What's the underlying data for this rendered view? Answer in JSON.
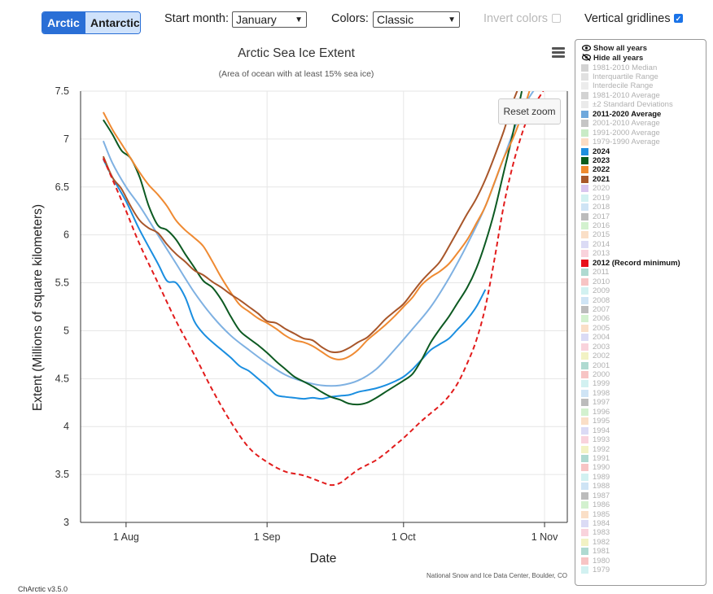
{
  "toolbar": {
    "hemisphere_buttons": [
      {
        "label": "Arctic",
        "active": true
      },
      {
        "label": "Antarctic",
        "active": false
      }
    ],
    "start_month_label": "Start month:",
    "start_month_value": "January",
    "colors_label": "Colors:",
    "colors_value": "Classic",
    "invert_colors_label": "Invert colors",
    "invert_colors_checked": false,
    "vertical_gridlines_label": "Vertical gridlines",
    "vertical_gridlines_checked": true
  },
  "chart_controls": {
    "reset_zoom_label": "Reset zoom",
    "menu_icon": "hamburger-menu-icon"
  },
  "footer": {
    "version": "ChArctic v3.5.0"
  },
  "legend": {
    "show_all": "Show all years",
    "hide_all": "Hide all years",
    "show_icon": "eye-icon",
    "hide_icon": "eye-slash-icon",
    "items": [
      {
        "label": "1981-2010 Median",
        "color": "#a8a8a8",
        "visible": false
      },
      {
        "label": "Interquartile Range",
        "color": "#c4c4c4",
        "visible": false
      },
      {
        "label": "Interdecile Range",
        "color": "#dadada",
        "visible": false
      },
      {
        "label": "1981-2010 Average",
        "color": "#a8a8a8",
        "visible": false
      },
      {
        "label": "±2 Standard Deviations",
        "color": "#d6d6d6",
        "visible": false
      },
      {
        "label": "2011-2020 Average",
        "color": "#6fa8dc",
        "visible": true
      },
      {
        "label": "2001-2010 Average",
        "color": "#8c8c8c",
        "visible": false
      },
      {
        "label": "1991-2000 Average",
        "color": "#93d88e",
        "visible": false
      },
      {
        "label": "1979-1990 Average",
        "color": "#f7b98a",
        "visible": false
      },
      {
        "label": "2024",
        "color": "#1f8fe0",
        "visible": true
      },
      {
        "label": "2023",
        "color": "#0b5d1e",
        "visible": true
      },
      {
        "label": "2022",
        "color": "#ef8a2e",
        "visible": true
      },
      {
        "label": "2021",
        "color": "#a9582a",
        "visible": true
      },
      {
        "label": "2020",
        "color": "#b48be0",
        "visible": false
      },
      {
        "label": "2019",
        "color": "#a6e3e3",
        "visible": false
      },
      {
        "label": "2018",
        "color": "#9fc9ec",
        "visible": false
      },
      {
        "label": "2017",
        "color": "#7a7a7a",
        "visible": false
      },
      {
        "label": "2016",
        "color": "#a7e49f",
        "visible": false
      },
      {
        "label": "2015",
        "color": "#f6c08f",
        "visible": false
      },
      {
        "label": "2014",
        "color": "#b7b7ec",
        "visible": false
      },
      {
        "label": "2013",
        "color": "#f3a7b9",
        "visible": false
      },
      {
        "label": "2012 (Record minimum)",
        "color": "#e8111b",
        "visible": true
      },
      {
        "label": "2011",
        "color": "#5fb5a3",
        "visible": false
      },
      {
        "label": "2010",
        "color": "#f08a8a",
        "visible": false
      },
      {
        "label": "2009",
        "color": "#a6e3e3",
        "visible": false
      },
      {
        "label": "2008",
        "color": "#9fc9ec",
        "visible": false
      },
      {
        "label": "2007",
        "color": "#7a7a7a",
        "visible": false
      },
      {
        "label": "2006",
        "color": "#a7e49f",
        "visible": false
      },
      {
        "label": "2005",
        "color": "#f6c08f",
        "visible": false
      },
      {
        "label": "2004",
        "color": "#b7b7ec",
        "visible": false
      },
      {
        "label": "2003",
        "color": "#f3a7b9",
        "visible": false
      },
      {
        "label": "2002",
        "color": "#e6e68a",
        "visible": false
      },
      {
        "label": "2001",
        "color": "#5fb5a3",
        "visible": false
      },
      {
        "label": "2000",
        "color": "#f08a8a",
        "visible": false
      },
      {
        "label": "1999",
        "color": "#a6e3e3",
        "visible": false
      },
      {
        "label": "1998",
        "color": "#9fc9ec",
        "visible": false
      },
      {
        "label": "1997",
        "color": "#7a7a7a",
        "visible": false
      },
      {
        "label": "1996",
        "color": "#a7e49f",
        "visible": false
      },
      {
        "label": "1995",
        "color": "#f6c08f",
        "visible": false
      },
      {
        "label": "1994",
        "color": "#b7b7ec",
        "visible": false
      },
      {
        "label": "1993",
        "color": "#f3a7b9",
        "visible": false
      },
      {
        "label": "1992",
        "color": "#e6e68a",
        "visible": false
      },
      {
        "label": "1991",
        "color": "#5fb5a3",
        "visible": false
      },
      {
        "label": "1990",
        "color": "#f08a8a",
        "visible": false
      },
      {
        "label": "1989",
        "color": "#a6e3e3",
        "visible": false
      },
      {
        "label": "1988",
        "color": "#9fc9ec",
        "visible": false
      },
      {
        "label": "1987",
        "color": "#7a7a7a",
        "visible": false
      },
      {
        "label": "1986",
        "color": "#a7e49f",
        "visible": false
      },
      {
        "label": "1985",
        "color": "#f6c08f",
        "visible": false
      },
      {
        "label": "1984",
        "color": "#b7b7ec",
        "visible": false
      },
      {
        "label": "1983",
        "color": "#f3a7b9",
        "visible": false
      },
      {
        "label": "1982",
        "color": "#e6e68a",
        "visible": false
      },
      {
        "label": "1981",
        "color": "#5fb5a3",
        "visible": false
      },
      {
        "label": "1980",
        "color": "#f08a8a",
        "visible": false
      },
      {
        "label": "1979",
        "color": "#a6e3e3",
        "visible": false
      }
    ]
  },
  "chart_data": {
    "type": "line",
    "title": "Arctic Sea Ice Extent",
    "subtitle": "(Area of ocean with at least 15% sea ice)",
    "xlabel": "Date",
    "ylabel": "Extent (Millions of square kilometers)",
    "credit": "National Snow and Ice Data Center, Boulder, CO",
    "x_unit": "day of year",
    "xlim": [
      203,
      310
    ],
    "ylim": [
      3,
      7.5
    ],
    "x_ticks": [
      {
        "x": 213,
        "label": "1 Aug"
      },
      {
        "x": 244,
        "label": "1 Sep"
      },
      {
        "x": 274,
        "label": "1 Oct"
      },
      {
        "x": 305,
        "label": "1 Nov"
      }
    ],
    "y_ticks": [
      {
        "y": 3,
        "label": "3"
      },
      {
        "y": 3.5,
        "label": "3.5"
      },
      {
        "y": 4,
        "label": "4"
      },
      {
        "y": 4.5,
        "label": "4.5"
      },
      {
        "y": 5,
        "label": "5"
      },
      {
        "y": 5.5,
        "label": "5.5"
      },
      {
        "y": 6,
        "label": "6"
      },
      {
        "y": 6.5,
        "label": "6.5"
      },
      {
        "y": 7,
        "label": "7"
      },
      {
        "y": 7.5,
        "label": "7.5"
      }
    ],
    "grid": {
      "horizontal": true,
      "vertical": true
    },
    "series": [
      {
        "name": "2011-2020 Average",
        "color": "#7fb1e2",
        "dash": false,
        "x": [
          208,
          210,
          213,
          216,
          220,
          224,
          228,
          232,
          236,
          240,
          244,
          248,
          252,
          256,
          260,
          264,
          268,
          272,
          276,
          280,
          284,
          288,
          292,
          296,
          300,
          304
        ],
        "y": [
          6.98,
          6.75,
          6.5,
          6.3,
          6.0,
          5.7,
          5.4,
          5.15,
          4.95,
          4.8,
          4.66,
          4.54,
          4.47,
          4.43,
          4.43,
          4.48,
          4.6,
          4.8,
          5.02,
          5.25,
          5.55,
          5.9,
          6.3,
          6.8,
          7.3,
          7.6
        ]
      },
      {
        "name": "2024",
        "color": "#1a8ee0",
        "dash": false,
        "x": [
          208,
          210,
          213,
          216,
          220,
          222,
          224,
          226,
          228,
          230,
          232,
          234,
          236,
          238,
          240,
          242,
          244,
          246,
          248,
          250,
          252,
          254,
          256,
          258,
          260,
          262,
          264,
          266,
          268,
          270,
          272,
          274,
          276,
          278,
          280,
          282,
          284,
          286,
          288,
          290,
          292
        ],
        "y": [
          6.79,
          6.6,
          6.35,
          6.05,
          5.7,
          5.52,
          5.5,
          5.35,
          5.1,
          4.97,
          4.88,
          4.8,
          4.72,
          4.63,
          4.58,
          4.5,
          4.42,
          4.33,
          4.31,
          4.3,
          4.29,
          4.3,
          4.29,
          4.31,
          4.32,
          4.33,
          4.36,
          4.38,
          4.4,
          4.43,
          4.47,
          4.52,
          4.6,
          4.7,
          4.8,
          4.86,
          4.92,
          5.02,
          5.12,
          5.25,
          5.43
        ]
      },
      {
        "name": "2023",
        "color": "#0d5a22",
        "dash": false,
        "x": [
          208,
          210,
          212,
          214,
          216,
          218,
          220,
          222,
          224,
          226,
          228,
          230,
          232,
          234,
          236,
          238,
          240,
          242,
          244,
          246,
          248,
          250,
          252,
          254,
          256,
          258,
          260,
          262,
          264,
          266,
          268,
          270,
          272,
          274,
          276,
          278,
          280,
          282,
          284,
          286,
          288,
          290,
          292,
          294,
          296,
          298,
          300
        ],
        "y": [
          7.2,
          7.05,
          6.88,
          6.8,
          6.6,
          6.3,
          6.1,
          6.05,
          5.95,
          5.8,
          5.66,
          5.52,
          5.45,
          5.32,
          5.15,
          5.0,
          4.92,
          4.85,
          4.77,
          4.68,
          4.6,
          4.52,
          4.47,
          4.42,
          4.36,
          4.31,
          4.28,
          4.24,
          4.23,
          4.25,
          4.3,
          4.36,
          4.42,
          4.48,
          4.55,
          4.7,
          4.88,
          5.02,
          5.15,
          5.3,
          5.45,
          5.65,
          5.92,
          6.25,
          6.65,
          7.05,
          7.5
        ]
      },
      {
        "name": "2022",
        "color": "#ef8a32",
        "dash": false,
        "x": [
          208,
          210,
          212,
          214,
          216,
          218,
          220,
          222,
          224,
          226,
          228,
          230,
          232,
          234,
          236,
          238,
          240,
          242,
          244,
          246,
          248,
          250,
          252,
          254,
          256,
          258,
          260,
          262,
          264,
          266,
          268,
          270,
          272,
          274,
          276,
          278,
          280,
          282,
          284,
          286,
          288,
          290,
          292,
          294,
          296,
          298,
          300,
          302
        ],
        "y": [
          7.28,
          7.1,
          6.95,
          6.8,
          6.65,
          6.52,
          6.42,
          6.3,
          6.15,
          6.05,
          5.97,
          5.88,
          5.72,
          5.55,
          5.4,
          5.27,
          5.2,
          5.13,
          5.08,
          5.02,
          4.95,
          4.9,
          4.88,
          4.84,
          4.78,
          4.72,
          4.7,
          4.73,
          4.8,
          4.9,
          4.98,
          5.06,
          5.15,
          5.25,
          5.35,
          5.48,
          5.56,
          5.62,
          5.7,
          5.82,
          5.95,
          6.12,
          6.3,
          6.55,
          6.8,
          7.0,
          7.25,
          7.55
        ]
      },
      {
        "name": "2021",
        "color": "#a8562a",
        "dash": false,
        "x": [
          208,
          210,
          212,
          214,
          216,
          218,
          220,
          222,
          224,
          226,
          228,
          230,
          232,
          234,
          236,
          238,
          240,
          242,
          244,
          246,
          248,
          250,
          252,
          254,
          256,
          258,
          260,
          262,
          264,
          266,
          268,
          270,
          272,
          274,
          276,
          278,
          280,
          282,
          284,
          286,
          288,
          290,
          292,
          294,
          296,
          298,
          300
        ],
        "y": [
          6.82,
          6.6,
          6.48,
          6.3,
          6.15,
          6.07,
          6.02,
          5.9,
          5.8,
          5.72,
          5.63,
          5.58,
          5.51,
          5.45,
          5.38,
          5.32,
          5.25,
          5.18,
          5.1,
          5.08,
          5.02,
          4.97,
          4.92,
          4.9,
          4.83,
          4.78,
          4.78,
          4.82,
          4.88,
          4.93,
          5.02,
          5.12,
          5.2,
          5.28,
          5.4,
          5.52,
          5.62,
          5.72,
          5.88,
          6.05,
          6.22,
          6.38,
          6.58,
          6.82,
          7.08,
          7.38,
          7.62
        ]
      },
      {
        "name": "2012 (Record minimum)",
        "color": "#e21c1c",
        "dash": true,
        "x": [
          208,
          210,
          213,
          216,
          220,
          224,
          228,
          232,
          236,
          240,
          244,
          248,
          252,
          256,
          258,
          260,
          262,
          264,
          266,
          268,
          270,
          272,
          274,
          276,
          278,
          280,
          282,
          284,
          286,
          288,
          290,
          292,
          294,
          296,
          298,
          300,
          302,
          304,
          306
        ],
        "y": [
          6.8,
          6.58,
          6.25,
          5.9,
          5.5,
          5.1,
          4.75,
          4.38,
          4.05,
          3.78,
          3.63,
          3.53,
          3.49,
          3.42,
          3.39,
          3.41,
          3.48,
          3.55,
          3.6,
          3.65,
          3.72,
          3.8,
          3.88,
          3.97,
          4.06,
          4.14,
          4.22,
          4.32,
          4.46,
          4.66,
          4.9,
          5.25,
          5.75,
          6.3,
          6.72,
          7.05,
          7.3,
          7.45,
          7.6
        ]
      }
    ]
  }
}
